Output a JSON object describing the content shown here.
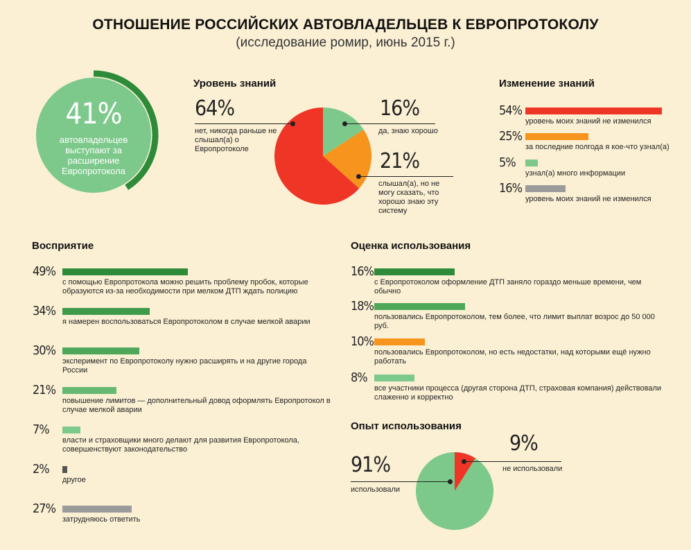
{
  "header": {
    "title": "ОТНОШЕНИЕ РОССИЙСКИХ АВТОВЛАДЕЛЬЦЕВ К ЕВРОПРОТОКОЛУ",
    "subtitle": "(исследование ромир, июнь 2015 г.)"
  },
  "colors": {
    "red": "#ee3526",
    "orange": "#f7941d",
    "light_green": "#7dc98b",
    "mid_green": "#4fa85a",
    "dark_green": "#2e8b3a",
    "gray": "#9b9b9b",
    "dark_gray": "#555555"
  },
  "circle": {
    "value": "41%",
    "text": "автовладельцев выступают за расширение Европротокола",
    "percent": 41
  },
  "chart_data": [
    {
      "type": "pie",
      "title": "Уровень знаний",
      "slices": [
        {
          "value": 64,
          "value_label": "64%",
          "label": "нет, никогда раньше не слышал(а) о Европротоколе",
          "color": "#ee3526"
        },
        {
          "value": 16,
          "value_label": "16%",
          "label": "да, знаю хорошо",
          "color": "#7dc98b"
        },
        {
          "value": 21,
          "value_label": "21%",
          "label": "слышал(а), но не могу сказать, что хорошо знаю эту систему",
          "color": "#f7941d"
        }
      ]
    },
    {
      "type": "bar",
      "title": "Изменение знаний",
      "bars": [
        {
          "value": 54,
          "value_label": "54%",
          "label": "уровень моих знаний не изменился",
          "color": "#ee3526"
        },
        {
          "value": 25,
          "value_label": "25%",
          "label": "за последние полгода я кое-что узнал(а)",
          "color": "#f7941d"
        },
        {
          "value": 5,
          "value_label": "5%",
          "label": "узнал(а) много информации",
          "color": "#7dc98b"
        },
        {
          "value": 16,
          "value_label": "16%",
          "label": "уровень моих знаний не изменился",
          "color": "#9b9b9b"
        }
      ]
    },
    {
      "type": "bar",
      "title": "Восприятие",
      "bars": [
        {
          "value": 49,
          "value_label": "49%",
          "label": "с помощью Европротокола можно решить проблему пробок, которые образуются из-за необходимости при мелком ДТП ждать полицию",
          "color": "#2e8b3a"
        },
        {
          "value": 34,
          "value_label": "34%",
          "label": "я намерен воспользоваться Европротоколом в случае мелкой аварии",
          "color": "#3f9b49"
        },
        {
          "value": 30,
          "value_label": "30%",
          "label": "эксперимент по Европротоколу нужно расширять и на другие города России",
          "color": "#4fa85a"
        },
        {
          "value": 21,
          "value_label": "21%",
          "label": "повышение лимитов — дополнительный довод оформлять Европротокол в случае мелкой аварии",
          "color": "#66b872"
        },
        {
          "value": 7,
          "value_label": "7%",
          "label": "власти и страховщики много делают для развития Европротокола, совершенствуют законодательство",
          "color": "#7dc98b"
        },
        {
          "value": 2,
          "value_label": "2%",
          "label": "другое",
          "color": "#555555"
        },
        {
          "value": 27,
          "value_label": "27%",
          "label": "затрудняюсь ответить",
          "color": "#9b9b9b"
        }
      ]
    },
    {
      "type": "bar",
      "title": "Оценка использования",
      "bars": [
        {
          "value": 16,
          "value_label": "16%",
          "label": "с Европротоколом оформление ДТП заняло гораздо меньше времени, чем обычно",
          "color": "#2e8b3a"
        },
        {
          "value": 18,
          "value_label": "18%",
          "label": "пользовались Европротоколом, тем более, что лимит выплат возрос до 50 000 руб.",
          "color": "#4fa85a"
        },
        {
          "value": 10,
          "value_label": "10%",
          "label": "пользовались Европротоколом, но есть недостатки, над которыми ещё нужно работать",
          "color": "#f7941d"
        },
        {
          "value": 8,
          "value_label": "8%",
          "label": "все участники процесса (другая сторона ДТП, страховая компания) действовали слаженно и корректно",
          "color": "#7dc98b"
        }
      ]
    },
    {
      "type": "pie",
      "title": "Опыт использования",
      "slices": [
        {
          "value": 9,
          "value_label": "9%",
          "label": "не использовали",
          "color": "#ee3526"
        },
        {
          "value": 91,
          "value_label": "91%",
          "label": "использовали",
          "color": "#7dc98b"
        }
      ]
    }
  ]
}
